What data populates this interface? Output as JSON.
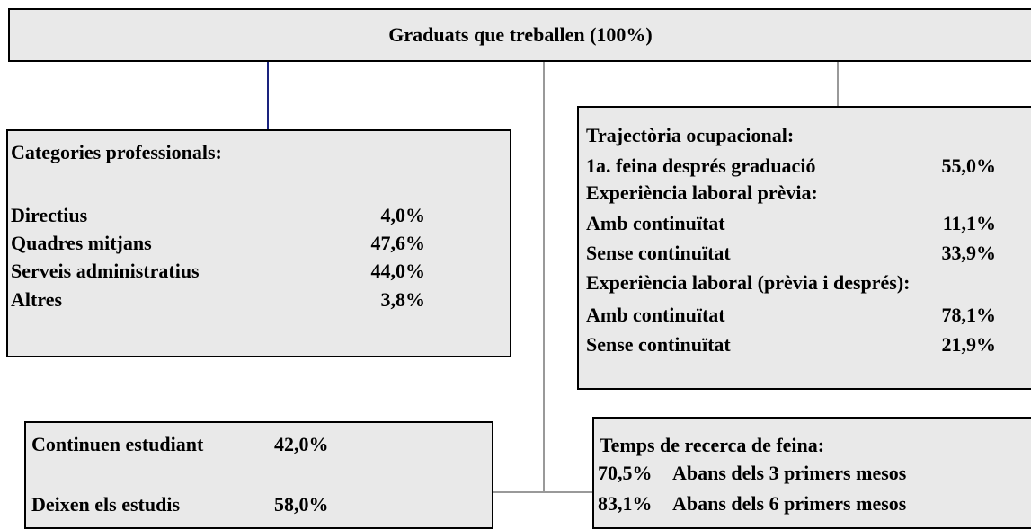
{
  "header": {
    "title": "Graduats que treballen (100%)"
  },
  "categories_box": {
    "title": "Categories professionals:",
    "rows": [
      {
        "label": "Directius",
        "value": "4,0%"
      },
      {
        "label": "Quadres mitjans",
        "value": "47,6%"
      },
      {
        "label": "Serveis administratius",
        "value": "44,0%"
      },
      {
        "label": "Altres",
        "value": "3,8%"
      }
    ]
  },
  "trajectory_box": {
    "title": "Trajectòria ocupacional:",
    "rows": [
      {
        "label": "1a. feina després graduació",
        "value": "55,0%"
      },
      {
        "label": "Experiència laboral prèvia:"
      },
      {
        "label": "Amb continuïtat",
        "value": "11,1%"
      },
      {
        "label": "Sense continuïtat",
        "value": "33,9%"
      },
      {
        "label": "Experiència laboral (prèvia i després):"
      },
      {
        "label": "Amb continuïtat",
        "value": "78,1%"
      },
      {
        "label": "Sense continuïtat",
        "value": "21,9%"
      }
    ]
  },
  "studies_box": {
    "rows": [
      {
        "label": "Continuen estudiant",
        "value": "42,0%"
      },
      {
        "label": "Deixen els estudis",
        "value": "58,0%"
      }
    ]
  },
  "search_box": {
    "title": "Temps de recerca de feina:",
    "rows": [
      {
        "value": "70,5%",
        "label": "Abans dels 3 primers mesos"
      },
      {
        "value": "83,1%",
        "label": "Abans dels 6 primers mesos"
      }
    ]
  }
}
